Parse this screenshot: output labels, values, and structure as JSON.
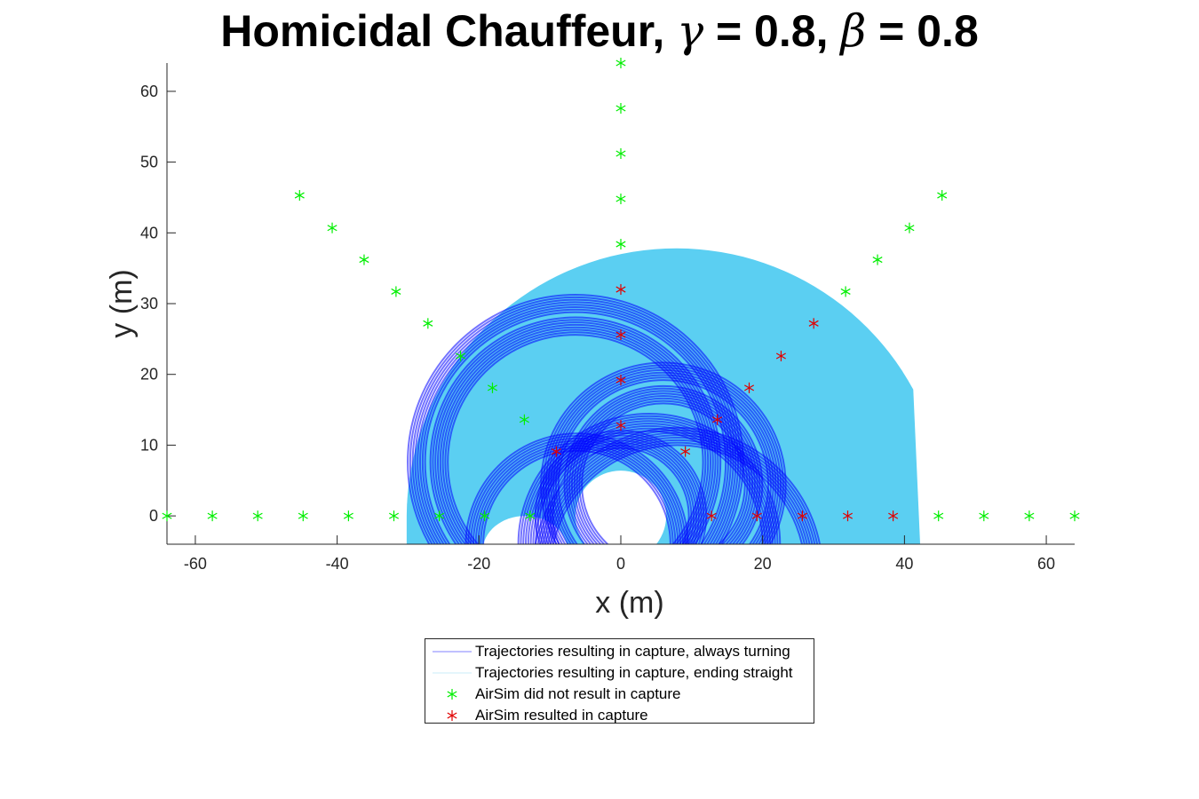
{
  "title": {
    "prefix": "Homicidal Chauffeur, ",
    "gamma_symbol": "γ",
    "gamma_text": " = 0.8, ",
    "beta_symbol": "β",
    "beta_text": " = 0.8"
  },
  "colors": {
    "always_turning": "#0000ff",
    "ending_straight": "#5bcff2",
    "no_capture": "#00ee00",
    "capture": "#e00000",
    "axis": "#262626"
  },
  "legend": {
    "items": [
      {
        "label": "Trajectories resulting in capture, always turning",
        "marker": "line",
        "color": "#8080ff"
      },
      {
        "label": "Trajectories resulting in capture, ending straight",
        "marker": "line",
        "color": "#c8ecf8"
      },
      {
        "label": "AirSim did not result in capture",
        "marker": "star",
        "color": "#00ee00"
      },
      {
        "label": "AirSim resulted in capture",
        "marker": "star",
        "color": "#e00000"
      }
    ]
  },
  "chart_data": {
    "type": "scatter",
    "xlabel": "x (m)",
    "ylabel": "y (m)",
    "xlim": [
      -64,
      64
    ],
    "ylim": [
      -4,
      64
    ],
    "xticks": [
      -60,
      -40,
      -20,
      0,
      20,
      40,
      60
    ],
    "yticks": [
      0,
      10,
      20,
      30,
      40,
      50,
      60
    ],
    "grid": false,
    "legend_position": "below",
    "regions": {
      "ending_straight": {
        "description_free": true,
        "outer_center": [
          7.8,
          0
        ],
        "outer_radius": 38,
        "inner_hole_center": [
          0,
          0
        ],
        "inner_hole_radius": 6.4,
        "right_edge_x": 42.3
      },
      "always_turning_circles": [
        {
          "cx": -6.4,
          "cy": 7.6,
          "r": 21.2
        },
        {
          "cx": -6.4,
          "cy": 7.6,
          "r": 18.0
        },
        {
          "cx": 6.0,
          "cy": 4.4,
          "r": 14.8
        },
        {
          "cx": 6.0,
          "cy": 4.4,
          "r": 11.5
        },
        {
          "cx": 0.0,
          "cy": 0.0,
          "r": 9.6
        },
        {
          "cx": -6.2,
          "cy": -4.0,
          "r": 13.2
        },
        {
          "cx": 4.0,
          "cy": -4.0,
          "r": 16.0
        },
        {
          "cx": 8.0,
          "cy": -8.0,
          "r": 18.0
        }
      ]
    },
    "series": [
      {
        "name": "AirSim did not result in capture",
        "points": [
          [
            -64.0,
            0.0
          ],
          [
            -57.6,
            0.0
          ],
          [
            -51.2,
            0.0
          ],
          [
            -44.8,
            0.0
          ],
          [
            -38.4,
            0.0
          ],
          [
            -32.0,
            0.0
          ],
          [
            -25.6,
            0.0
          ],
          [
            -19.2,
            0.0
          ],
          [
            -12.8,
            0.0
          ],
          [
            44.8,
            0.0
          ],
          [
            51.2,
            0.0
          ],
          [
            57.6,
            0.0
          ],
          [
            64.0,
            0.0
          ],
          [
            -45.3,
            45.3
          ],
          [
            -40.7,
            40.7
          ],
          [
            -36.2,
            36.2
          ],
          [
            -31.7,
            31.7
          ],
          [
            -27.2,
            27.2
          ],
          [
            -22.6,
            22.6
          ],
          [
            -18.1,
            18.1
          ],
          [
            -13.6,
            13.6
          ],
          [
            0.0,
            38.4
          ],
          [
            0.0,
            44.8
          ],
          [
            0.0,
            51.2
          ],
          [
            0.0,
            57.6
          ],
          [
            0.0,
            64.0
          ],
          [
            31.7,
            31.7
          ],
          [
            36.2,
            36.2
          ],
          [
            40.7,
            40.7
          ],
          [
            45.3,
            45.3
          ]
        ]
      },
      {
        "name": "AirSim resulted in capture",
        "points": [
          [
            12.8,
            0.0
          ],
          [
            19.2,
            0.0
          ],
          [
            25.6,
            0.0
          ],
          [
            32.0,
            0.0
          ],
          [
            38.4,
            0.0
          ],
          [
            0.0,
            12.8
          ],
          [
            0.0,
            19.2
          ],
          [
            0.0,
            25.6
          ],
          [
            0.0,
            32.0
          ],
          [
            -9.1,
            9.1
          ],
          [
            9.1,
            9.1
          ],
          [
            13.6,
            13.6
          ],
          [
            18.1,
            18.1
          ],
          [
            22.6,
            22.6
          ],
          [
            27.2,
            27.2
          ]
        ]
      }
    ]
  }
}
